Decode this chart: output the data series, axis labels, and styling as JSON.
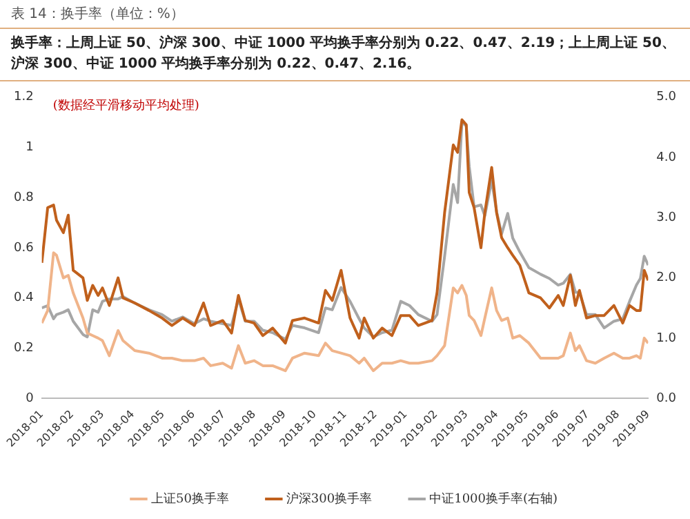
{
  "chart_data": {
    "type": "line",
    "title": "表 14：换手率（单位：%）",
    "subtitle": "换手率：上周上证 50、沪深 300、中证 1000 平均换手率分别为 0.22、0.47、2.19；上上周上证 50、沪深 300、中证 1000 平均换手率分别为 0.22、0.47、2.16。",
    "annotations": [
      "(数据经平滑移动平均处理)"
    ],
    "x": [
      "2018-01-01",
      "2018-01-07",
      "2018-01-13",
      "2018-01-16",
      "2018-01-23",
      "2018-01-28",
      "2018-02-02",
      "2018-02-11",
      "2018-02-15",
      "2018-02-20",
      "2018-02-25",
      "2018-03-01",
      "2018-03-08",
      "2018-03-17",
      "2018-03-22",
      "2018-04-03",
      "2018-04-17",
      "2018-04-30",
      "2018-05-10",
      "2018-05-21",
      "2018-06-02",
      "2018-06-11",
      "2018-06-18",
      "2018-06-30",
      "2018-07-09",
      "2018-07-16",
      "2018-07-23",
      "2018-08-01",
      "2018-08-10",
      "2018-08-20",
      "2018-09-02",
      "2018-09-09",
      "2018-09-21",
      "2018-10-05",
      "2018-10-12",
      "2018-10-19",
      "2018-10-28",
      "2018-11-06",
      "2018-11-15",
      "2018-11-20",
      "2018-11-29",
      "2018-12-08",
      "2018-12-18",
      "2018-12-27",
      "2019-01-05",
      "2019-01-14",
      "2019-01-28",
      "2019-02-02",
      "2019-02-09",
      "2019-02-17",
      "2019-02-21",
      "2019-02-25",
      "2019-03-01",
      "2019-03-04",
      "2019-03-09",
      "2019-03-16",
      "2019-03-20",
      "2019-03-27",
      "2019-04-01",
      "2019-04-06",
      "2019-04-12",
      "2019-04-17",
      "2019-04-24",
      "2019-05-03",
      "2019-05-15",
      "2019-05-24",
      "2019-06-02",
      "2019-06-07",
      "2019-06-14",
      "2019-06-19",
      "2019-06-23",
      "2019-06-30",
      "2019-07-09",
      "2019-07-18",
      "2019-07-28",
      "2019-08-06",
      "2019-08-13",
      "2019-08-20",
      "2019-08-24",
      "2019-08-28",
      "2019-09-01"
    ],
    "series": [
      {
        "name": "上证50换手率",
        "color": "#f0b48a",
        "values": [
          0.3,
          0.35,
          0.58,
          0.57,
          0.48,
          0.49,
          0.42,
          0.32,
          0.26,
          0.25,
          0.24,
          0.23,
          0.17,
          0.27,
          0.23,
          0.19,
          0.18,
          0.16,
          0.16,
          0.15,
          0.15,
          0.16,
          0.13,
          0.14,
          0.12,
          0.21,
          0.14,
          0.15,
          0.13,
          0.13,
          0.11,
          0.16,
          0.18,
          0.17,
          0.22,
          0.19,
          0.18,
          0.17,
          0.14,
          0.16,
          0.11,
          0.14,
          0.14,
          0.15,
          0.14,
          0.14,
          0.15,
          0.17,
          0.21,
          0.44,
          0.42,
          0.45,
          0.41,
          0.33,
          0.31,
          0.25,
          0.32,
          0.44,
          0.35,
          0.31,
          0.32,
          0.24,
          0.25,
          0.22,
          0.16,
          0.16,
          0.16,
          0.17,
          0.26,
          0.19,
          0.21,
          0.15,
          0.14,
          0.16,
          0.18,
          0.16,
          0.16,
          0.17,
          0.16,
          0.24,
          0.22
        ]
      },
      {
        "name": "沪深300换手率",
        "color": "#c0601c",
        "values": [
          0.54,
          0.76,
          0.77,
          0.71,
          0.66,
          0.73,
          0.51,
          0.48,
          0.39,
          0.45,
          0.41,
          0.44,
          0.37,
          0.48,
          0.4,
          0.38,
          0.35,
          0.32,
          0.29,
          0.32,
          0.29,
          0.38,
          0.29,
          0.31,
          0.26,
          0.41,
          0.31,
          0.3,
          0.25,
          0.28,
          0.22,
          0.31,
          0.32,
          0.3,
          0.43,
          0.39,
          0.51,
          0.32,
          0.24,
          0.32,
          0.24,
          0.28,
          0.25,
          0.33,
          0.33,
          0.29,
          0.31,
          0.42,
          0.74,
          1.01,
          0.98,
          1.11,
          1.09,
          0.82,
          0.76,
          0.6,
          0.74,
          0.92,
          0.74,
          0.64,
          0.6,
          0.57,
          0.53,
          0.42,
          0.4,
          0.36,
          0.41,
          0.37,
          0.49,
          0.37,
          0.43,
          0.32,
          0.33,
          0.33,
          0.37,
          0.3,
          0.37,
          0.35,
          0.35,
          0.51,
          0.47
        ]
      },
      {
        "name": "中证1000换手率(右轴)",
        "color": "#a6a6a6",
        "axis": "y2",
        "values": [
          1.5,
          1.54,
          1.32,
          1.39,
          1.43,
          1.47,
          1.28,
          1.06,
          1.02,
          1.47,
          1.43,
          1.61,
          1.65,
          1.65,
          1.69,
          1.58,
          1.47,
          1.39,
          1.28,
          1.35,
          1.24,
          1.32,
          1.28,
          1.24,
          1.21,
          1.65,
          1.28,
          1.28,
          1.13,
          1.09,
          0.98,
          1.21,
          1.17,
          1.09,
          1.5,
          1.47,
          1.84,
          1.61,
          1.32,
          1.17,
          1.02,
          1.09,
          1.13,
          1.61,
          1.54,
          1.39,
          1.28,
          1.39,
          2.36,
          3.55,
          3.25,
          4.59,
          4.52,
          3.85,
          3.18,
          3.21,
          3.03,
          3.62,
          3.1,
          2.73,
          3.07,
          2.66,
          2.43,
          2.17,
          2.06,
          1.99,
          1.88,
          1.91,
          2.06,
          1.76,
          1.76,
          1.39,
          1.39,
          1.17,
          1.28,
          1.32,
          1.61,
          1.88,
          1.99,
          2.36,
          2.21
        ]
      }
    ],
    "xlim": [
      "2018-01",
      "2019-09"
    ],
    "xticks": [
      "2018-01",
      "2018-02",
      "2018-03",
      "2018-04",
      "2018-05",
      "2018-06",
      "2018-07",
      "2018-08",
      "2018-09",
      "2018-10",
      "2018-11",
      "2018-12",
      "2019-01",
      "2019-02",
      "2019-03",
      "2019-04",
      "2019-05",
      "2019-06",
      "2019-07",
      "2019-08",
      "2019-09"
    ],
    "ylim": [
      0,
      1.2
    ],
    "yticks": [
      0,
      0.2,
      0.4,
      0.6,
      0.8,
      1,
      1.2
    ],
    "y2lim": [
      0,
      5
    ],
    "y2ticks": [
      {
        "value": 0,
        "label": "0.0"
      },
      {
        "value": 1,
        "label": "1.0"
      },
      {
        "value": 2,
        "label": "2.0"
      },
      {
        "value": 3,
        "label": "3.0"
      },
      {
        "value": 4,
        "label": "4.0"
      },
      {
        "value": 5,
        "label": "5.0"
      }
    ],
    "grid": false,
    "legend": "bottom",
    "marker": "none",
    "line_style": "solid"
  }
}
